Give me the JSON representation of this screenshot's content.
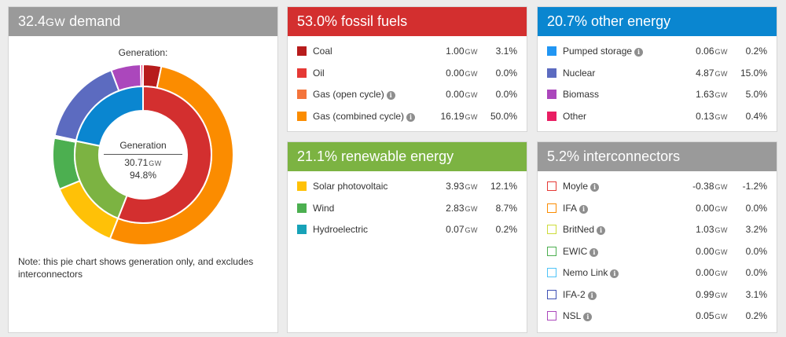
{
  "colors": {
    "demand_head": "#9a9a9a",
    "fossil_head": "#d32f2f",
    "renew_head": "#7cb342",
    "other_head": "#0a86d0",
    "inter_head": "#9a9a9a",
    "coal": "#b71c1c",
    "oil": "#e53935",
    "gas_oc": "#f4743b",
    "gas_cc": "#fb8c00",
    "solar": "#ffc107",
    "wind": "#4caf50",
    "hydro": "#17a2b8",
    "pumped": "#2196f3",
    "nuclear": "#5c6bc0",
    "biomass": "#ab47bc",
    "other": "#e91e63",
    "fossil_total": "#d32f2f",
    "renew_total": "#7cb342",
    "other_total": "#0a86d0"
  },
  "demand": {
    "value": "32.4",
    "unit": "GW",
    "suffix": "demand",
    "chart_label": "Generation:",
    "center_title": "Generation",
    "center_value": "30.71",
    "center_unit": "GW",
    "center_pct": "94.8%",
    "note": "Note: this pie chart shows generation only, and excludes interconnectors"
  },
  "fossil": {
    "title": "53.0% fossil fuels",
    "rows": [
      {
        "label": "Coal",
        "info": false,
        "value": "1.00",
        "unit": "GW",
        "pct": "3.1%",
        "color_key": "coal"
      },
      {
        "label": "Oil",
        "info": false,
        "value": "0.00",
        "unit": "GW",
        "pct": "0.0%",
        "color_key": "oil"
      },
      {
        "label": "Gas (open cycle)",
        "info": true,
        "value": "0.00",
        "unit": "GW",
        "pct": "0.0%",
        "color_key": "gas_oc"
      },
      {
        "label": "Gas (combined cycle)",
        "info": true,
        "value": "16.19",
        "unit": "GW",
        "pct": "50.0%",
        "color_key": "gas_cc"
      }
    ]
  },
  "renewable": {
    "title": "21.1% renewable energy",
    "rows": [
      {
        "label": "Solar photovoltaic",
        "info": false,
        "value": "3.93",
        "unit": "GW",
        "pct": "12.1%",
        "color_key": "solar"
      },
      {
        "label": "Wind",
        "info": false,
        "value": "2.83",
        "unit": "GW",
        "pct": "8.7%",
        "color_key": "wind"
      },
      {
        "label": "Hydroelectric",
        "info": false,
        "value": "0.07",
        "unit": "GW",
        "pct": "0.2%",
        "color_key": "hydro"
      }
    ]
  },
  "other": {
    "title": "20.7% other energy",
    "rows": [
      {
        "label": "Pumped storage",
        "info": true,
        "value": "0.06",
        "unit": "GW",
        "pct": "0.2%",
        "color_key": "pumped"
      },
      {
        "label": "Nuclear",
        "info": false,
        "value": "4.87",
        "unit": "GW",
        "pct": "15.0%",
        "color_key": "nuclear"
      },
      {
        "label": "Biomass",
        "info": false,
        "value": "1.63",
        "unit": "GW",
        "pct": "5.0%",
        "color_key": "biomass"
      },
      {
        "label": "Other",
        "info": false,
        "value": "0.13",
        "unit": "GW",
        "pct": "0.4%",
        "color_key": "other"
      }
    ]
  },
  "interconnectors": {
    "title": "5.2% interconnectors",
    "rows": [
      {
        "label": "Moyle",
        "info": true,
        "value": "-0.38",
        "unit": "GW",
        "pct": "-1.2%",
        "color": "#e53935"
      },
      {
        "label": "IFA",
        "info": true,
        "value": "0.00",
        "unit": "GW",
        "pct": "0.0%",
        "color": "#fb8c00"
      },
      {
        "label": "BritNed",
        "info": true,
        "value": "1.03",
        "unit": "GW",
        "pct": "3.2%",
        "color": "#cddc39"
      },
      {
        "label": "EWIC",
        "info": true,
        "value": "0.00",
        "unit": "GW",
        "pct": "0.0%",
        "color": "#4caf50"
      },
      {
        "label": "Nemo Link",
        "info": true,
        "value": "0.00",
        "unit": "GW",
        "pct": "0.0%",
        "color": "#4fc3f7"
      },
      {
        "label": "IFA-2",
        "info": true,
        "value": "0.99",
        "unit": "GW",
        "pct": "3.1%",
        "color": "#3f51b5"
      },
      {
        "label": "NSL",
        "info": true,
        "value": "0.05",
        "unit": "GW",
        "pct": "0.2%",
        "color": "#ab47bc"
      }
    ]
  },
  "chart_data": {
    "type": "pie",
    "title": "Generation:",
    "units": "GW",
    "rings": {
      "inner": [
        {
          "name": "Fossil fuels",
          "value": 17.19,
          "color_key": "fossil_total"
        },
        {
          "name": "Renewable energy",
          "value": 6.83,
          "color_key": "renew_total"
        },
        {
          "name": "Other energy",
          "value": 6.69,
          "color_key": "other_total"
        }
      ],
      "outer": [
        {
          "name": "Coal",
          "value": 1.0,
          "color_key": "coal"
        },
        {
          "name": "Oil",
          "value": 0.0,
          "color_key": "oil"
        },
        {
          "name": "Gas (open cycle)",
          "value": 0.0,
          "color_key": "gas_oc"
        },
        {
          "name": "Gas (combined cycle)",
          "value": 16.19,
          "color_key": "gas_cc"
        },
        {
          "name": "Solar photovoltaic",
          "value": 3.93,
          "color_key": "solar"
        },
        {
          "name": "Wind",
          "value": 2.83,
          "color_key": "wind"
        },
        {
          "name": "Hydroelectric",
          "value": 0.07,
          "color_key": "hydro"
        },
        {
          "name": "Pumped storage",
          "value": 0.06,
          "color_key": "pumped"
        },
        {
          "name": "Nuclear",
          "value": 4.87,
          "color_key": "nuclear"
        },
        {
          "name": "Biomass",
          "value": 1.63,
          "color_key": "biomass"
        },
        {
          "name": "Other",
          "value": 0.13,
          "color_key": "other"
        }
      ]
    }
  }
}
